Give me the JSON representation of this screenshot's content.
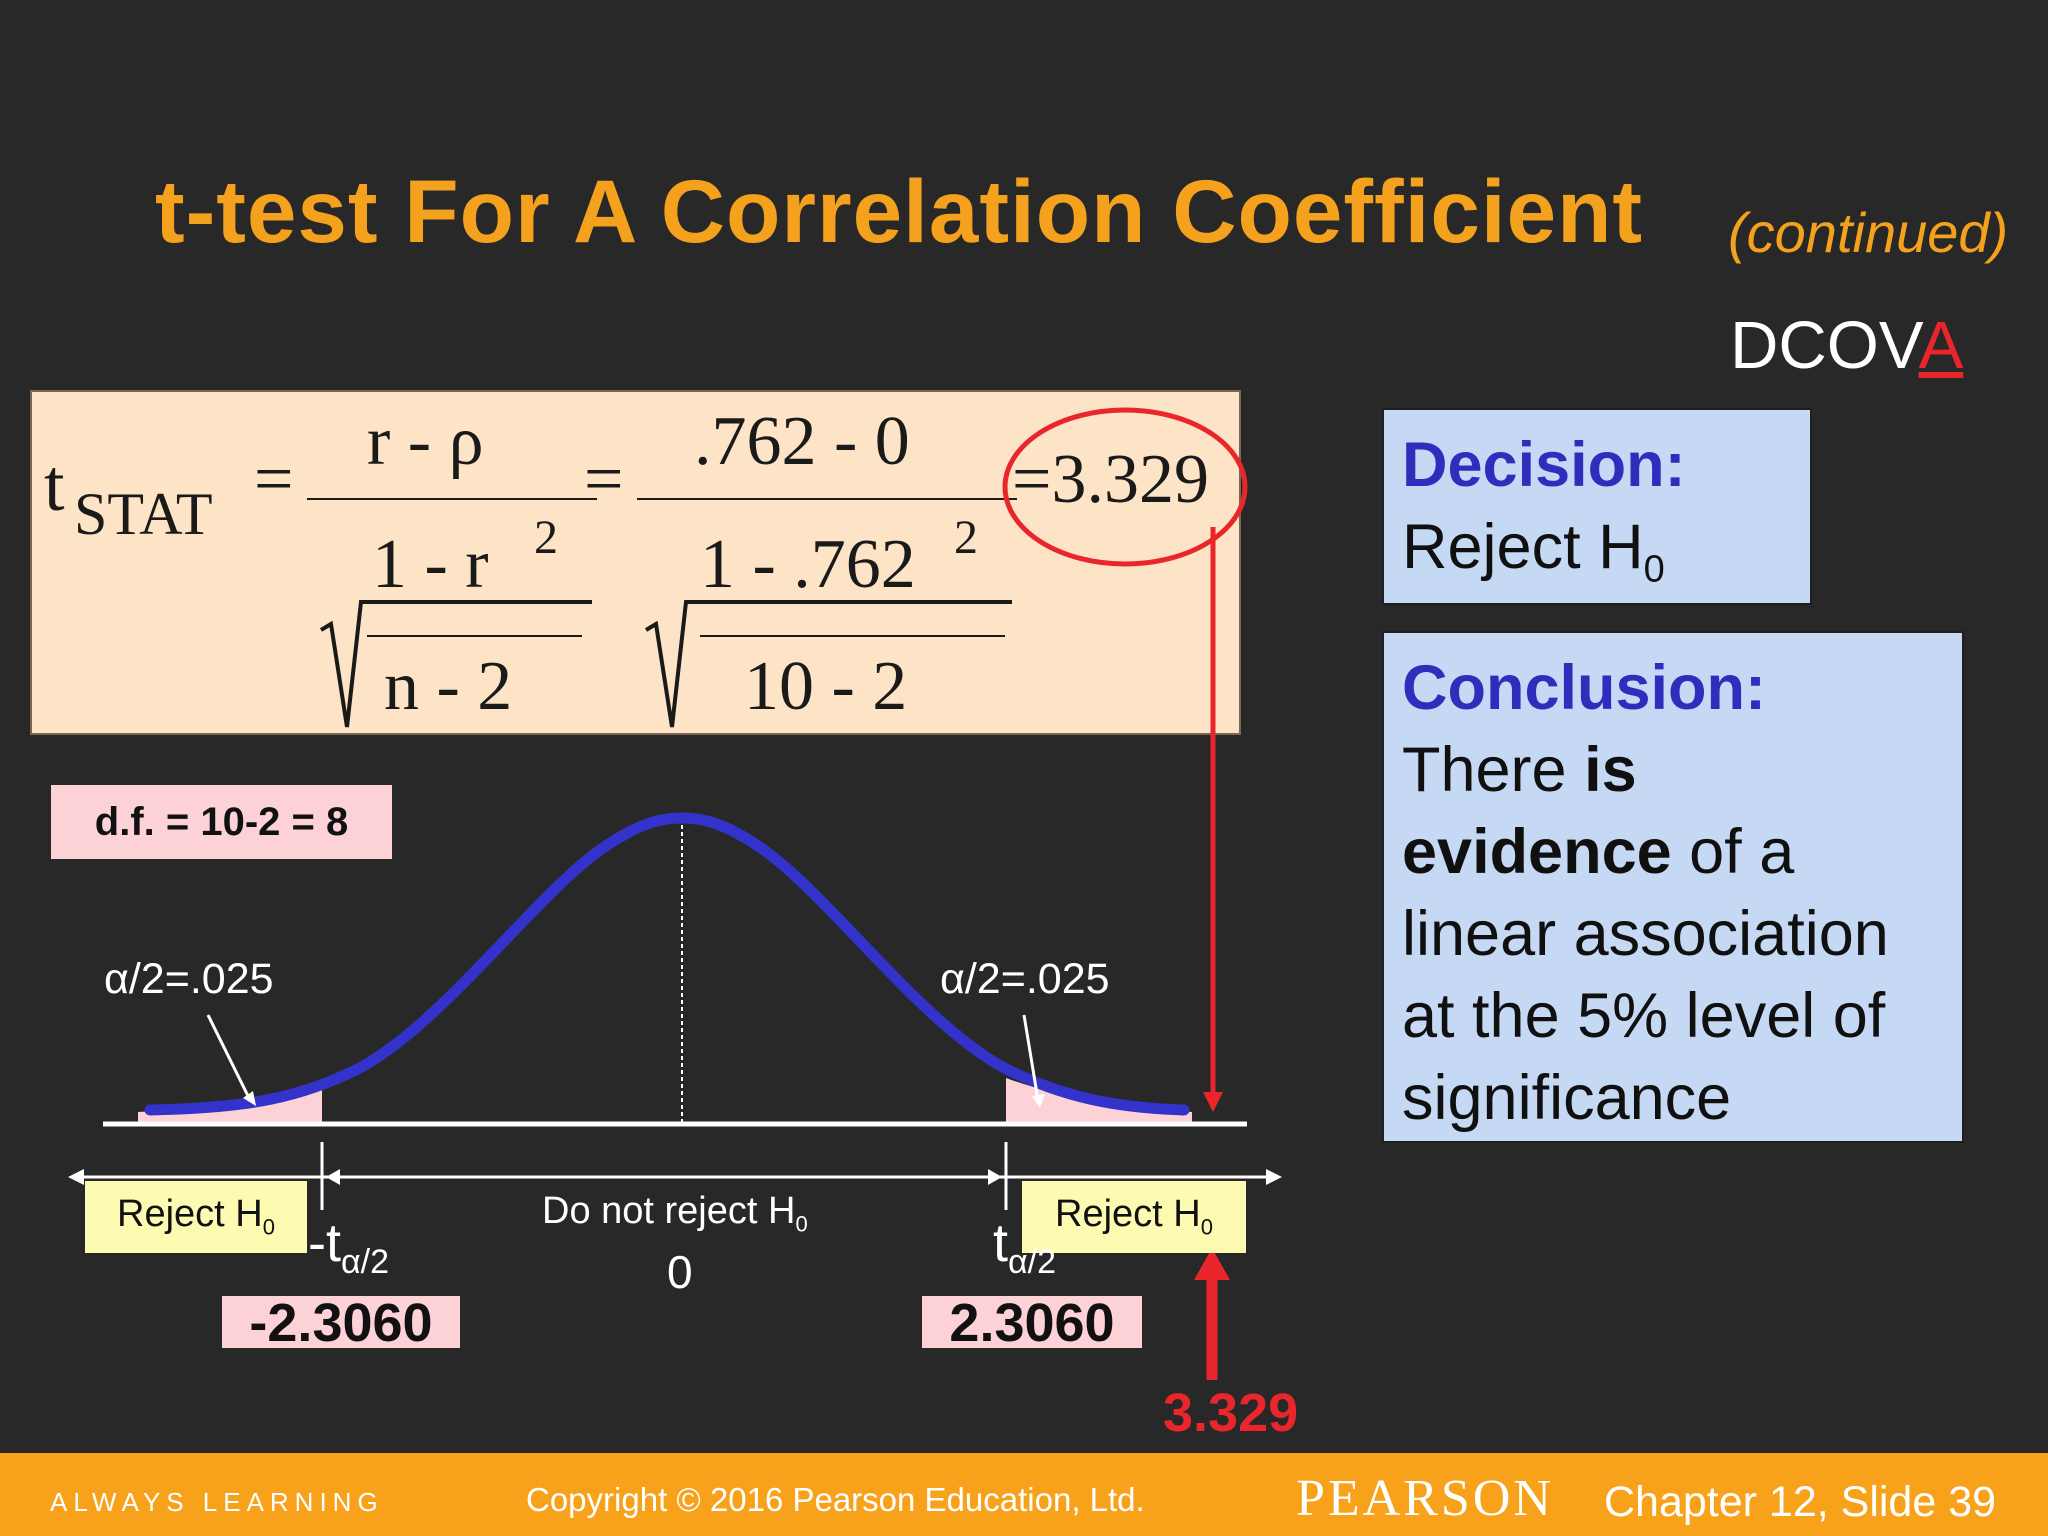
{
  "title": "t-test For A Correlation Coefficient",
  "continued": "(continued)",
  "dcova": {
    "prefix": "DCOV",
    "highlight": "A"
  },
  "formula": {
    "t": "t",
    "stat_sub": "STAT",
    "eq": "=",
    "num1": "r -  ρ",
    "rad1_num": "1 -  r",
    "rad1_exp": "2",
    "rad1_den": "n -  2",
    "num2": ".762 -  0",
    "rad2_num": "1 -  .762",
    "rad2_exp": "2",
    "rad2_den": "10 -  2",
    "result": "=3.329"
  },
  "decision": {
    "head": "Decision:",
    "body": "Reject H",
    "sub": "0"
  },
  "conclusion": {
    "head": "Conclusion:",
    "pre": "There ",
    "bold1": "is",
    "bold2": "evidence",
    "post": " of a",
    "line3": "linear association",
    "line4": "at the 5% level of",
    "line5": "significance"
  },
  "df": "d.f. = 10-2 = 8",
  "alpha_left": "α/2=.025",
  "alpha_right": "α/2=.025",
  "reject_left": {
    "text": "Reject H",
    "sub": "0"
  },
  "reject_right": {
    "text": "Reject H",
    "sub": "0"
  },
  "do_not_reject": {
    "text": "Do not reject H",
    "sub": "0"
  },
  "zero": "0",
  "neg_t": {
    "text": "-t",
    "sub": "α/2"
  },
  "pos_t": {
    "text": "t",
    "sub": "α/2"
  },
  "crit_left": "-2.3060",
  "crit_right": "2.3060",
  "tstat_value": "3.329",
  "footer": {
    "always": "ALWAYS LEARNING",
    "copyright": "Copyright © 2016 Pearson Education, Ltd.",
    "brand": "PEARSON",
    "slide": "Chapter 12, Slide 39"
  },
  "colors": {
    "title": "#f4a21d",
    "curve": "#3333cc",
    "arrow": "#e8262b",
    "footer": "#f8a21b"
  }
}
